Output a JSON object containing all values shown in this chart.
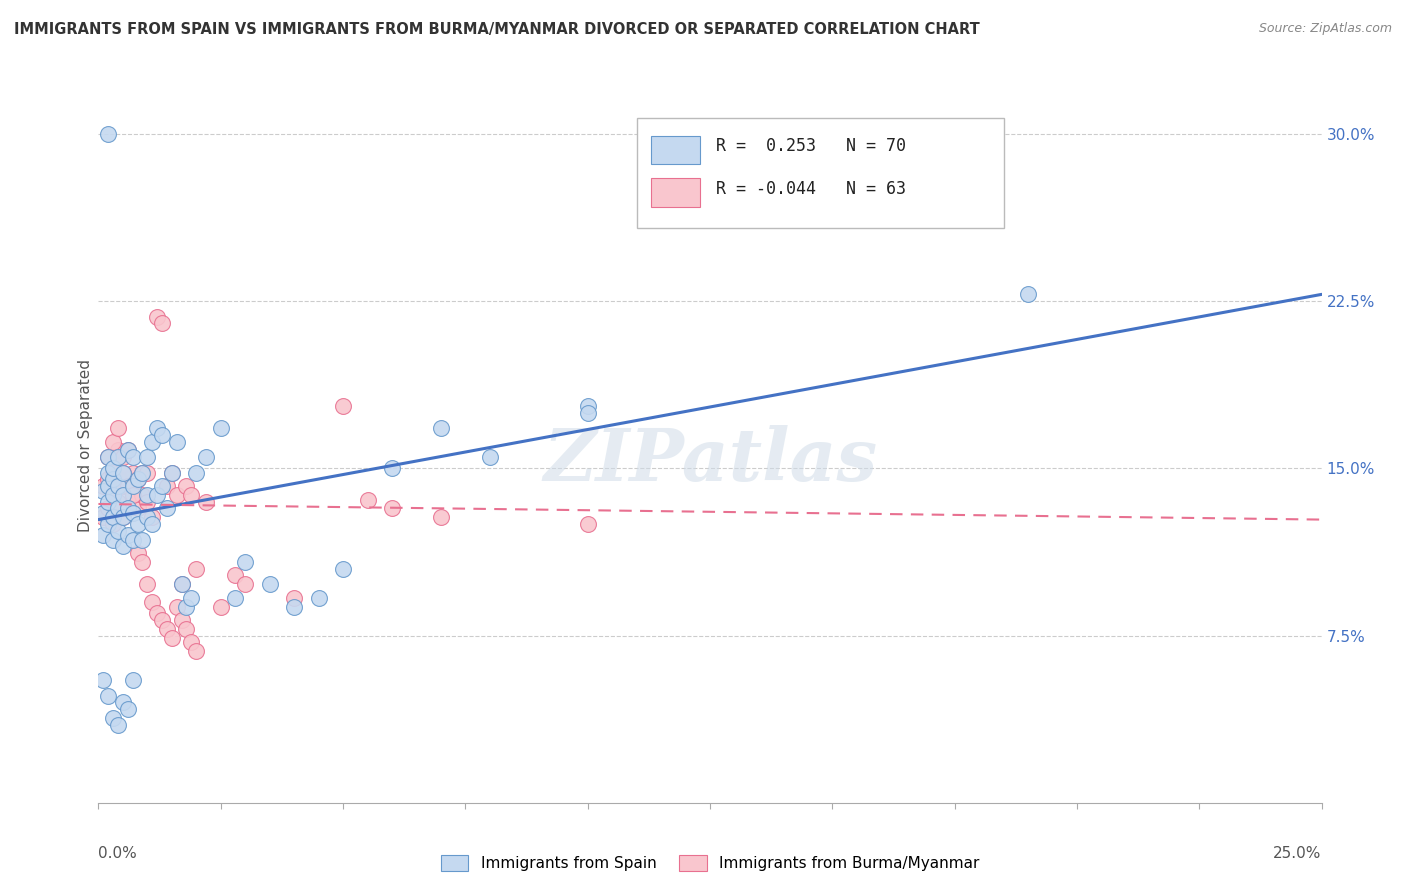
{
  "title": "IMMIGRANTS FROM SPAIN VS IMMIGRANTS FROM BURMA/MYANMAR DIVORCED OR SEPARATED CORRELATION CHART",
  "source": "Source: ZipAtlas.com",
  "ylabel": "Divorced or Separated",
  "yticks": [
    "7.5%",
    "15.0%",
    "22.5%",
    "30.0%"
  ],
  "ytick_vals": [
    0.075,
    0.15,
    0.225,
    0.3
  ],
  "xlim": [
    0.0,
    0.25
  ],
  "ylim": [
    0.0,
    0.32
  ],
  "blue_R": " 0.253",
  "blue_N": "70",
  "pink_R": "-0.044",
  "pink_N": "63",
  "blue_fill_color": "#c5d9f0",
  "pink_fill_color": "#f9c6ce",
  "blue_edge_color": "#6699cc",
  "pink_edge_color": "#e87090",
  "blue_line_color": "#4472c4",
  "pink_line_color": "#e87090",
  "watermark": "ZIPatlas",
  "legend_label_blue": "Immigrants from Spain",
  "legend_label_pink": "Immigrants from Burma/Myanmar",
  "blue_line_x0": 0.0,
  "blue_line_y0": 0.127,
  "blue_line_x1": 0.25,
  "blue_line_y1": 0.228,
  "pink_line_x0": 0.0,
  "pink_line_y0": 0.134,
  "pink_line_x1": 0.25,
  "pink_line_y1": 0.127,
  "blue_scatter_x": [
    0.001,
    0.001,
    0.001,
    0.002,
    0.002,
    0.002,
    0.002,
    0.002,
    0.003,
    0.003,
    0.003,
    0.003,
    0.003,
    0.004,
    0.004,
    0.004,
    0.004,
    0.005,
    0.005,
    0.005,
    0.005,
    0.006,
    0.006,
    0.006,
    0.007,
    0.007,
    0.007,
    0.007,
    0.008,
    0.008,
    0.009,
    0.009,
    0.01,
    0.01,
    0.01,
    0.011,
    0.011,
    0.012,
    0.012,
    0.013,
    0.013,
    0.014,
    0.015,
    0.016,
    0.017,
    0.018,
    0.019,
    0.02,
    0.022,
    0.025,
    0.028,
    0.03,
    0.035,
    0.04,
    0.045,
    0.05,
    0.06,
    0.07,
    0.08,
    0.1,
    0.001,
    0.002,
    0.003,
    0.004,
    0.005,
    0.006,
    0.007,
    0.1,
    0.19,
    0.002
  ],
  "blue_scatter_y": [
    0.12,
    0.13,
    0.14,
    0.125,
    0.135,
    0.142,
    0.148,
    0.155,
    0.118,
    0.128,
    0.138,
    0.145,
    0.15,
    0.122,
    0.132,
    0.142,
    0.155,
    0.115,
    0.128,
    0.138,
    0.148,
    0.12,
    0.132,
    0.158,
    0.118,
    0.13,
    0.142,
    0.155,
    0.125,
    0.145,
    0.118,
    0.148,
    0.128,
    0.138,
    0.155,
    0.125,
    0.162,
    0.138,
    0.168,
    0.142,
    0.165,
    0.132,
    0.148,
    0.162,
    0.098,
    0.088,
    0.092,
    0.148,
    0.155,
    0.168,
    0.092,
    0.108,
    0.098,
    0.088,
    0.092,
    0.105,
    0.15,
    0.168,
    0.155,
    0.178,
    0.055,
    0.048,
    0.038,
    0.035,
    0.045,
    0.042,
    0.055,
    0.175,
    0.228,
    0.3
  ],
  "pink_scatter_x": [
    0.001,
    0.001,
    0.002,
    0.002,
    0.002,
    0.003,
    0.003,
    0.003,
    0.004,
    0.004,
    0.004,
    0.005,
    0.005,
    0.005,
    0.006,
    0.006,
    0.006,
    0.007,
    0.007,
    0.008,
    0.008,
    0.009,
    0.009,
    0.01,
    0.01,
    0.011,
    0.012,
    0.013,
    0.014,
    0.015,
    0.016,
    0.017,
    0.018,
    0.019,
    0.02,
    0.022,
    0.025,
    0.028,
    0.03,
    0.04,
    0.05,
    0.055,
    0.06,
    0.07,
    0.003,
    0.004,
    0.005,
    0.006,
    0.007,
    0.008,
    0.009,
    0.01,
    0.011,
    0.012,
    0.013,
    0.014,
    0.015,
    0.016,
    0.017,
    0.018,
    0.019,
    0.02,
    0.1
  ],
  "pink_scatter_y": [
    0.128,
    0.142,
    0.132,
    0.145,
    0.155,
    0.125,
    0.138,
    0.148,
    0.135,
    0.145,
    0.158,
    0.128,
    0.142,
    0.155,
    0.132,
    0.145,
    0.158,
    0.138,
    0.148,
    0.132,
    0.145,
    0.138,
    0.148,
    0.135,
    0.148,
    0.128,
    0.218,
    0.215,
    0.142,
    0.148,
    0.138,
    0.098,
    0.142,
    0.138,
    0.105,
    0.135,
    0.088,
    0.102,
    0.098,
    0.092,
    0.178,
    0.136,
    0.132,
    0.128,
    0.162,
    0.168,
    0.148,
    0.142,
    0.138,
    0.112,
    0.108,
    0.098,
    0.09,
    0.085,
    0.082,
    0.078,
    0.074,
    0.088,
    0.082,
    0.078,
    0.072,
    0.068,
    0.125
  ]
}
